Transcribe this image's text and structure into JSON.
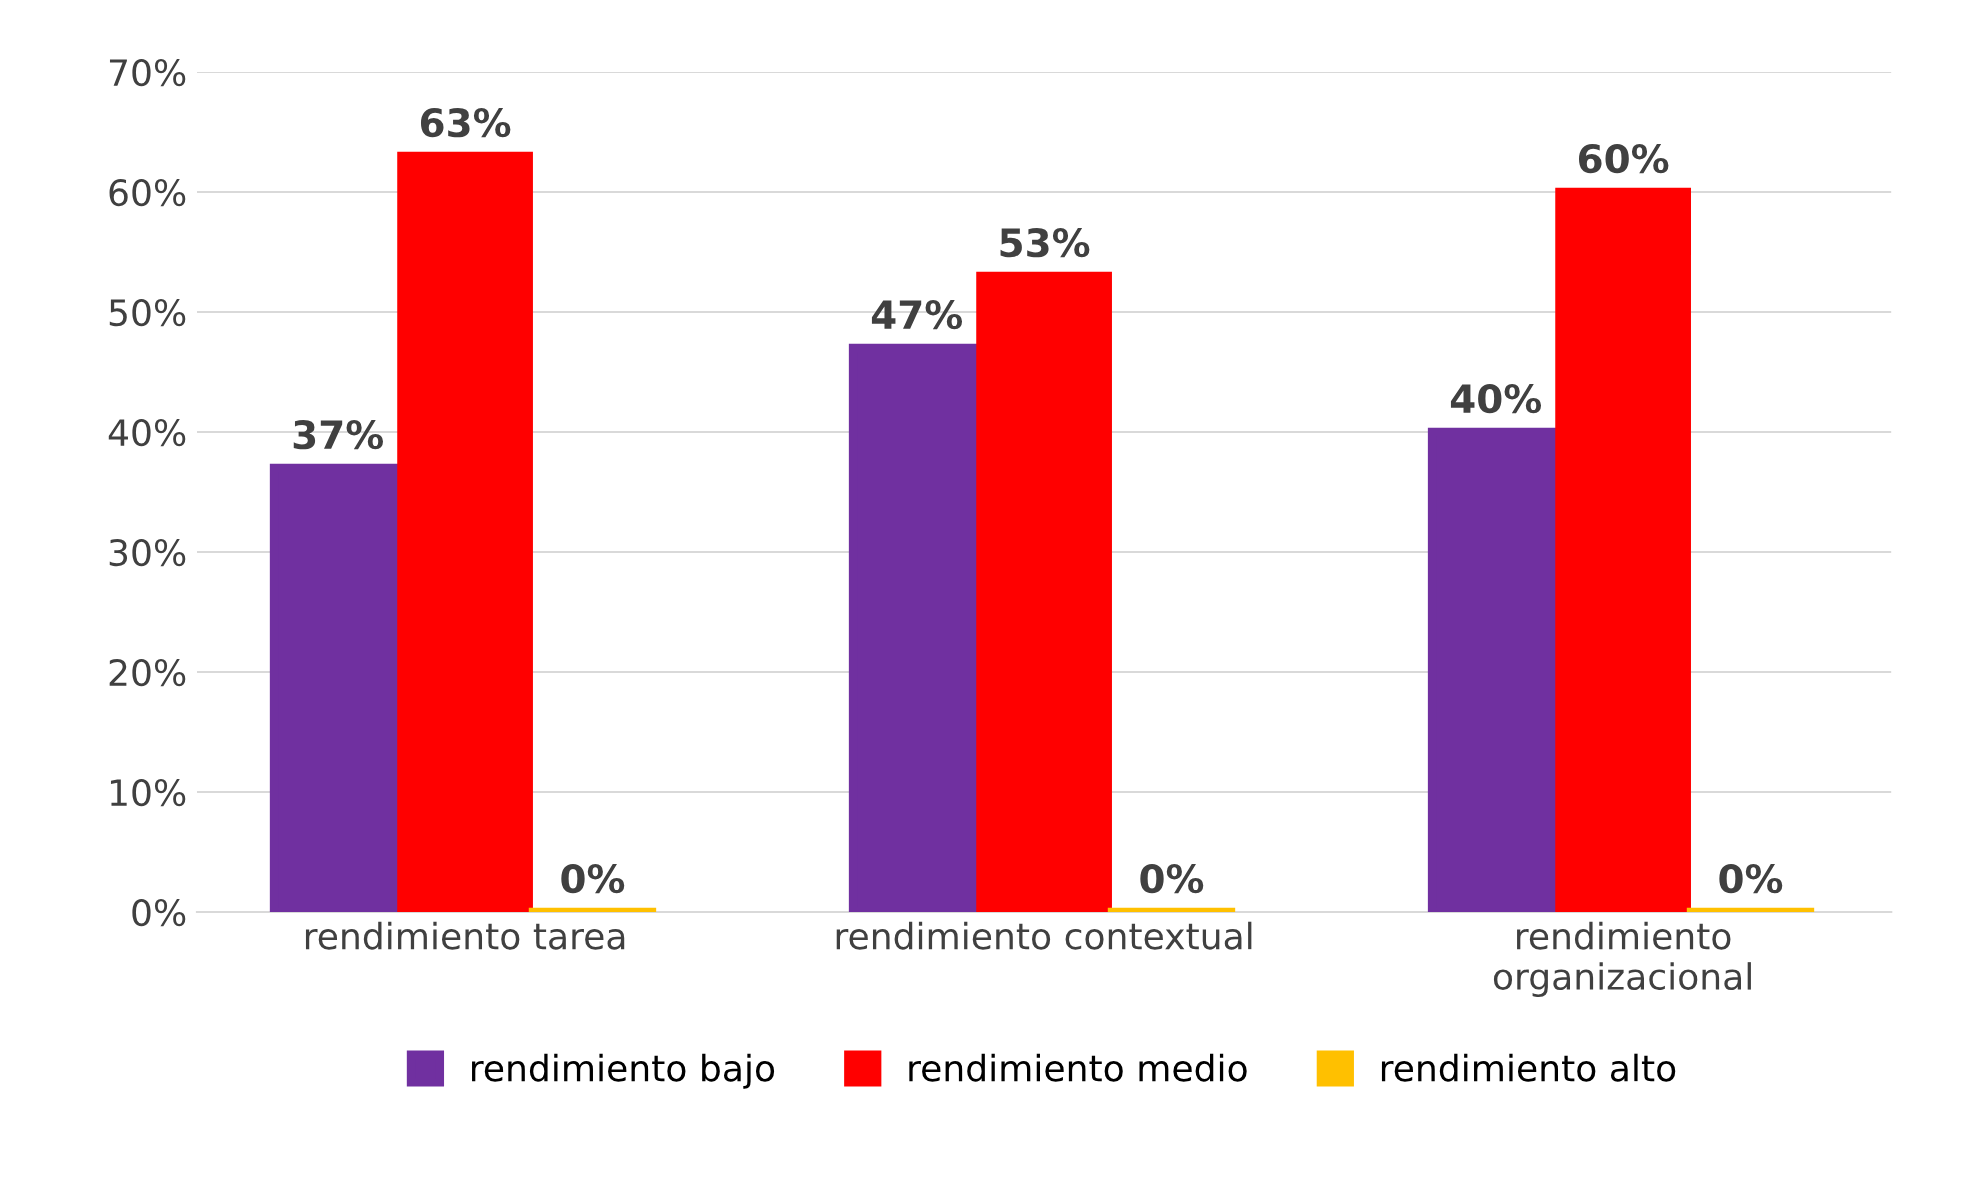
{
  "chart_data": {
    "type": "bar",
    "categories": [
      "rendimiento tarea",
      "rendimiento contextual",
      "rendimiento\norganizacional"
    ],
    "series": [
      {
        "name": "rendimiento bajo",
        "color": "#7030a0",
        "values": [
          37,
          47,
          40
        ],
        "value_labels": [
          "37%",
          "47%",
          "40%"
        ]
      },
      {
        "name": "rendimiento medio",
        "color": "#ff0000",
        "values": [
          63,
          53,
          60
        ],
        "value_labels": [
          "63%",
          "53%",
          "60%"
        ]
      },
      {
        "name": "rendimiento alto",
        "color": "#ffc000",
        "values": [
          0,
          0,
          0
        ],
        "value_labels": [
          "0%",
          "0%",
          "0%"
        ]
      }
    ],
    "ylim": [
      0,
      70
    ],
    "yticks": [
      {
        "value": 0,
        "label": "0%"
      },
      {
        "value": 10,
        "label": "10%"
      },
      {
        "value": 20,
        "label": "20%"
      },
      {
        "value": 30,
        "label": "30%"
      },
      {
        "value": 40,
        "label": "40%"
      },
      {
        "value": 50,
        "label": "50%"
      },
      {
        "value": 60,
        "label": "60%"
      },
      {
        "value": 70,
        "label": "70%"
      }
    ],
    "grid": "y",
    "legend": "bottom"
  }
}
